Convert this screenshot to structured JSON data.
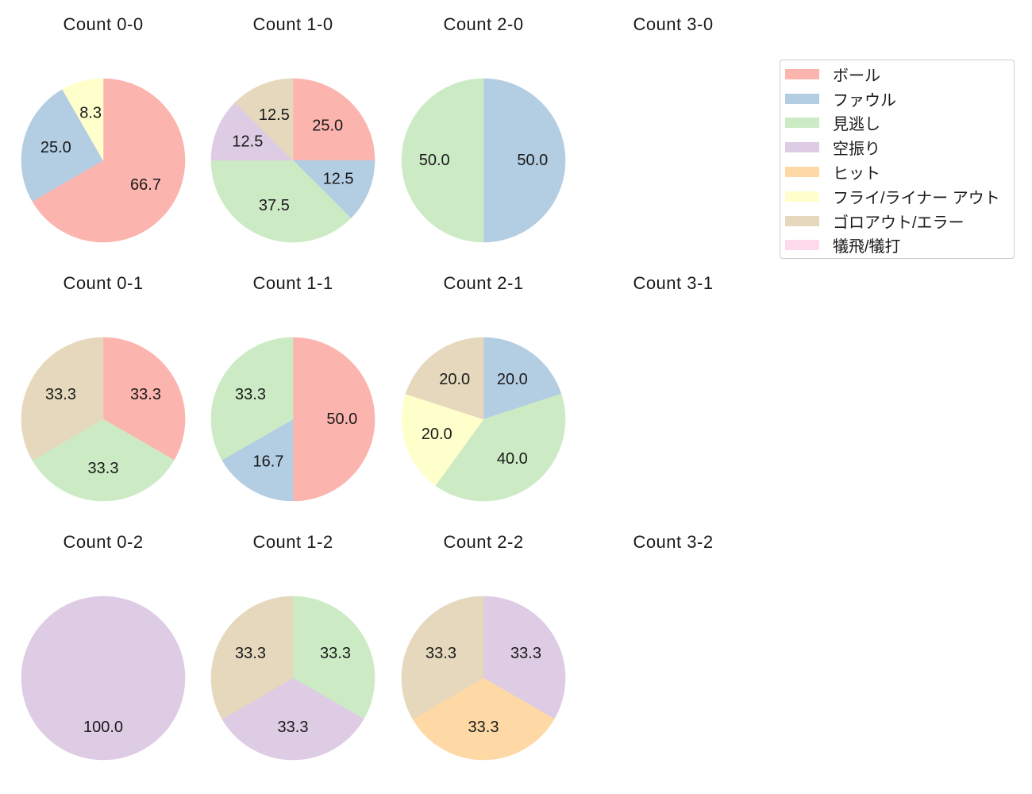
{
  "figure": {
    "background": "#ffffff",
    "text_color": "#1a1a1a"
  },
  "legend": {
    "position": "top-right",
    "border_color": "#cccccc",
    "items": [
      {
        "label": "ボール",
        "color": "#fbb4ae"
      },
      {
        "label": "ファウル",
        "color": "#b3cde3"
      },
      {
        "label": "見逃し",
        "color": "#ccebc5"
      },
      {
        "label": "空振り",
        "color": "#decbe4"
      },
      {
        "label": "ヒット",
        "color": "#fed9a6"
      },
      {
        "label": "フライ/ライナー アウト",
        "color": "#ffffcc"
      },
      {
        "label": "ゴロアウト/エラー",
        "color": "#e5d8bd"
      },
      {
        "label": "犠飛/犠打",
        "color": "#fddaec"
      }
    ]
  },
  "chart_data": {
    "type": "pie",
    "grid": {
      "rows": 3,
      "cols": 4
    },
    "start_angle": 90,
    "direction": "clockwise",
    "pct_distance": 0.6,
    "charts": [
      {
        "title": "Count 0-0",
        "row": 0,
        "col": 0,
        "slices": [
          {
            "category": "ボール",
            "value": 66.7,
            "label": "66.7"
          },
          {
            "category": "ファウル",
            "value": 25.0,
            "label": "25.0"
          },
          {
            "category": "フライ/ライナー アウト",
            "value": 8.3,
            "label": "8.3"
          }
        ]
      },
      {
        "title": "Count 1-0",
        "row": 0,
        "col": 1,
        "slices": [
          {
            "category": "ボール",
            "value": 25.0,
            "label": "25.0"
          },
          {
            "category": "ファウル",
            "value": 12.5,
            "label": "12.5"
          },
          {
            "category": "見逃し",
            "value": 37.5,
            "label": "37.5"
          },
          {
            "category": "空振り",
            "value": 12.5,
            "label": "12.5"
          },
          {
            "category": "ゴロアウト/エラー",
            "value": 12.5,
            "label": "12.5"
          }
        ]
      },
      {
        "title": "Count 2-0",
        "row": 0,
        "col": 2,
        "slices": [
          {
            "category": "ファウル",
            "value": 50.0,
            "label": "50.0"
          },
          {
            "category": "見逃し",
            "value": 50.0,
            "label": "50.0"
          }
        ]
      },
      {
        "title": "Count 3-0",
        "row": 0,
        "col": 3,
        "slices": []
      },
      {
        "title": "Count 0-1",
        "row": 1,
        "col": 0,
        "slices": [
          {
            "category": "ボール",
            "value": 33.3,
            "label": "33.3"
          },
          {
            "category": "見逃し",
            "value": 33.3,
            "label": "33.3"
          },
          {
            "category": "ゴロアウト/エラー",
            "value": 33.3,
            "label": "33.3"
          }
        ]
      },
      {
        "title": "Count 1-1",
        "row": 1,
        "col": 1,
        "slices": [
          {
            "category": "ボール",
            "value": 50.0,
            "label": "50.0"
          },
          {
            "category": "ファウル",
            "value": 16.7,
            "label": "16.7"
          },
          {
            "category": "見逃し",
            "value": 33.3,
            "label": "33.3"
          }
        ]
      },
      {
        "title": "Count 2-1",
        "row": 1,
        "col": 2,
        "slices": [
          {
            "category": "ファウル",
            "value": 20.0,
            "label": "20.0"
          },
          {
            "category": "見逃し",
            "value": 40.0,
            "label": "40.0"
          },
          {
            "category": "フライ/ライナー アウト",
            "value": 20.0,
            "label": "20.0"
          },
          {
            "category": "ゴロアウト/エラー",
            "value": 20.0,
            "label": "20.0"
          }
        ]
      },
      {
        "title": "Count 3-1",
        "row": 1,
        "col": 3,
        "slices": []
      },
      {
        "title": "Count 0-2",
        "row": 2,
        "col": 0,
        "slices": [
          {
            "category": "空振り",
            "value": 100.0,
            "label": "100.0"
          }
        ]
      },
      {
        "title": "Count 1-2",
        "row": 2,
        "col": 1,
        "slices": [
          {
            "category": "見逃し",
            "value": 33.3,
            "label": "33.3"
          },
          {
            "category": "空振り",
            "value": 33.3,
            "label": "33.3"
          },
          {
            "category": "ゴロアウト/エラー",
            "value": 33.3,
            "label": "33.3"
          }
        ]
      },
      {
        "title": "Count 2-2",
        "row": 2,
        "col": 2,
        "slices": [
          {
            "category": "空振り",
            "value": 33.3,
            "label": "33.3"
          },
          {
            "category": "ヒット",
            "value": 33.3,
            "label": "33.3"
          },
          {
            "category": "ゴロアウト/エラー",
            "value": 33.3,
            "label": "33.3"
          }
        ]
      },
      {
        "title": "Count 3-2",
        "row": 2,
        "col": 3,
        "slices": []
      }
    ]
  }
}
